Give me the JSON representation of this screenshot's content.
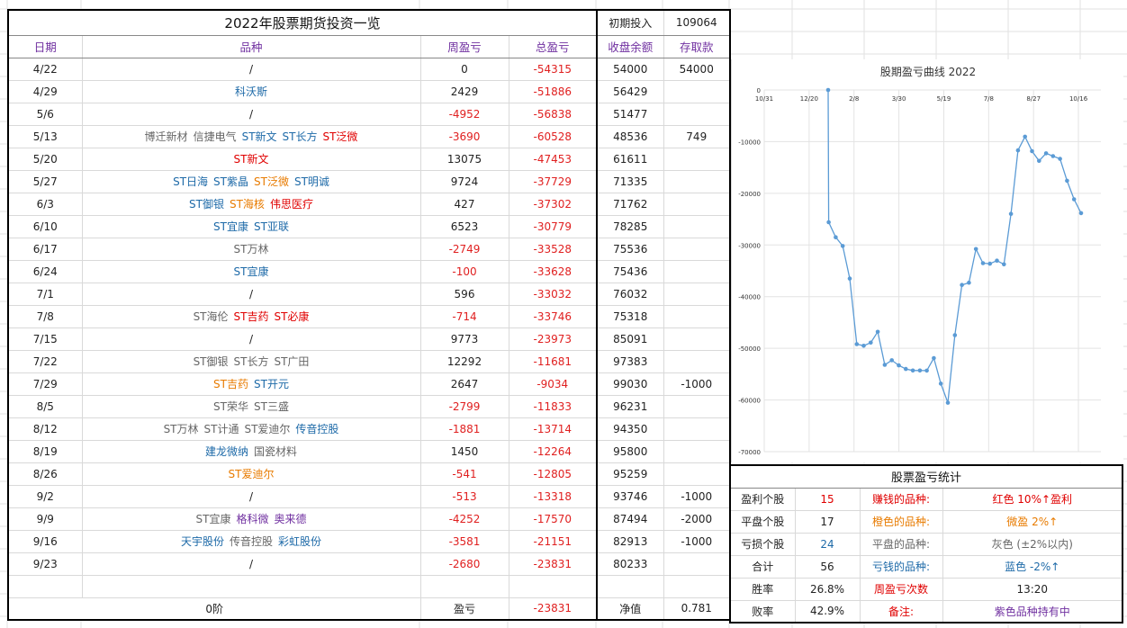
{
  "header": {
    "title": "2022年股票期货投资一览",
    "initial_label": "初期投入",
    "initial_value": "109064"
  },
  "columns": [
    "日期",
    "品种",
    "周盈亏",
    "总盈亏",
    "收盘余额",
    "存取款"
  ],
  "rows": [
    {
      "date": "4/22",
      "names": [
        {
          "t": "/",
          "c": "dark"
        }
      ],
      "weekly": "0",
      "total": "-54315",
      "balance": "54000",
      "cash": "54000"
    },
    {
      "date": "4/29",
      "names": [
        {
          "t": "科沃斯",
          "c": "blue"
        }
      ],
      "weekly": "2429",
      "total": "-51886",
      "balance": "56429",
      "cash": ""
    },
    {
      "date": "5/6",
      "names": [
        {
          "t": "/",
          "c": "dark"
        }
      ],
      "weekly": "-4952",
      "total": "-56838",
      "balance": "51477",
      "cash": ""
    },
    {
      "date": "5/13",
      "names": [
        {
          "t": "博迁新材",
          "c": "gray"
        },
        {
          "t": "信捷电气",
          "c": "gray"
        },
        {
          "t": "ST新文",
          "c": "blue"
        },
        {
          "t": "ST长方",
          "c": "blue"
        },
        {
          "t": "ST泛微",
          "c": "red"
        }
      ],
      "weekly": "-3690",
      "total": "-60528",
      "balance": "48536",
      "cash": "749"
    },
    {
      "date": "5/20",
      "names": [
        {
          "t": "ST新文",
          "c": "red"
        }
      ],
      "weekly": "13075",
      "total": "-47453",
      "balance": "61611",
      "cash": ""
    },
    {
      "date": "5/27",
      "names": [
        {
          "t": "ST日海",
          "c": "blue"
        },
        {
          "t": "ST紫晶",
          "c": "blue"
        },
        {
          "t": "ST泛微",
          "c": "orange"
        },
        {
          "t": "ST明诚",
          "c": "blue"
        }
      ],
      "weekly": "9724",
      "total": "-37729",
      "balance": "71335",
      "cash": ""
    },
    {
      "date": "6/3",
      "names": [
        {
          "t": "ST御银",
          "c": "blue"
        },
        {
          "t": "ST海核",
          "c": "orange"
        },
        {
          "t": "伟思医疗",
          "c": "red"
        }
      ],
      "weekly": "427",
      "total": "-37302",
      "balance": "71762",
      "cash": ""
    },
    {
      "date": "6/10",
      "names": [
        {
          "t": "ST宜康",
          "c": "blue"
        },
        {
          "t": "ST亚联",
          "c": "blue"
        }
      ],
      "weekly": "6523",
      "total": "-30779",
      "balance": "78285",
      "cash": ""
    },
    {
      "date": "6/17",
      "names": [
        {
          "t": "ST万林",
          "c": "gray"
        }
      ],
      "weekly": "-2749",
      "total": "-33528",
      "balance": "75536",
      "cash": ""
    },
    {
      "date": "6/24",
      "names": [
        {
          "t": "ST宜康",
          "c": "blue"
        }
      ],
      "weekly": "-100",
      "total": "-33628",
      "balance": "75436",
      "cash": ""
    },
    {
      "date": "7/1",
      "names": [
        {
          "t": "/",
          "c": "dark"
        }
      ],
      "weekly": "596",
      "total": "-33032",
      "balance": "76032",
      "cash": ""
    },
    {
      "date": "7/8",
      "names": [
        {
          "t": "ST海伦",
          "c": "gray"
        },
        {
          "t": "ST吉药",
          "c": "red"
        },
        {
          "t": "ST必康",
          "c": "red"
        }
      ],
      "weekly": "-714",
      "total": "-33746",
      "balance": "75318",
      "cash": ""
    },
    {
      "date": "7/15",
      "names": [
        {
          "t": "/",
          "c": "dark"
        }
      ],
      "weekly": "9773",
      "total": "-23973",
      "balance": "85091",
      "cash": ""
    },
    {
      "date": "7/22",
      "names": [
        {
          "t": "ST御银",
          "c": "gray"
        },
        {
          "t": "ST长方",
          "c": "gray"
        },
        {
          "t": "ST广田",
          "c": "gray"
        }
      ],
      "weekly": "12292",
      "total": "-11681",
      "balance": "97383",
      "cash": ""
    },
    {
      "date": "7/29",
      "names": [
        {
          "t": "ST吉药",
          "c": "orange"
        },
        {
          "t": "ST开元",
          "c": "blue"
        }
      ],
      "weekly": "2647",
      "total": "-9034",
      "balance": "99030",
      "cash": "-1000"
    },
    {
      "date": "8/5",
      "names": [
        {
          "t": "ST荣华",
          "c": "gray"
        },
        {
          "t": "ST三盛",
          "c": "gray"
        }
      ],
      "weekly": "-2799",
      "total": "-11833",
      "balance": "96231",
      "cash": ""
    },
    {
      "date": "8/12",
      "names": [
        {
          "t": "ST万林",
          "c": "gray"
        },
        {
          "t": "ST计通",
          "c": "gray"
        },
        {
          "t": "ST爱迪尔",
          "c": "gray"
        },
        {
          "t": "传音控股",
          "c": "blue"
        }
      ],
      "weekly": "-1881",
      "total": "-13714",
      "balance": "94350",
      "cash": ""
    },
    {
      "date": "8/19",
      "names": [
        {
          "t": "建龙微纳",
          "c": "blue"
        },
        {
          "t": "国瓷材料",
          "c": "gray"
        }
      ],
      "weekly": "1450",
      "total": "-12264",
      "balance": "95800",
      "cash": ""
    },
    {
      "date": "8/26",
      "names": [
        {
          "t": "ST爱迪尔",
          "c": "orange"
        }
      ],
      "weekly": "-541",
      "total": "-12805",
      "balance": "95259",
      "cash": ""
    },
    {
      "date": "9/2",
      "names": [
        {
          "t": "/",
          "c": "dark"
        }
      ],
      "weekly": "-513",
      "total": "-13318",
      "balance": "93746",
      "cash": "-1000"
    },
    {
      "date": "9/9",
      "names": [
        {
          "t": "ST宜康",
          "c": "gray"
        },
        {
          "t": "格科微",
          "c": "purple"
        },
        {
          "t": "奥来德",
          "c": "purple"
        }
      ],
      "weekly": "-4252",
      "total": "-17570",
      "balance": "87494",
      "cash": "-2000"
    },
    {
      "date": "9/16",
      "names": [
        {
          "t": "天宇股份",
          "c": "blue"
        },
        {
          "t": "传音控股",
          "c": "gray"
        },
        {
          "t": "彩虹股份",
          "c": "blue"
        }
      ],
      "weekly": "-3581",
      "total": "-21151",
      "balance": "82913",
      "cash": "-1000"
    },
    {
      "date": "9/23",
      "names": [
        {
          "t": "/",
          "c": "dark"
        }
      ],
      "weekly": "-2680",
      "total": "-23831",
      "balance": "80233",
      "cash": ""
    }
  ],
  "footer": {
    "label": "0阶",
    "pnl_label": "盈亏",
    "pnl_value": "-23831",
    "nav_label": "净值",
    "nav_value": "0.781"
  },
  "chart_data": {
    "type": "scatter",
    "title": "股期盈亏曲线 2022",
    "x": [
      "4/22",
      "4/29",
      "5/6",
      "5/13",
      "5/20",
      "5/27",
      "6/3",
      "6/10",
      "6/17",
      "6/24",
      "7/1",
      "7/8",
      "7/15",
      "7/22",
      "7/29",
      "8/5",
      "8/12",
      "8/19",
      "8/26",
      "9/2",
      "9/9",
      "9/16",
      "9/23"
    ],
    "y": [
      -54315,
      -51886,
      -56838,
      -60528,
      -47453,
      -37729,
      -37302,
      -30779,
      -33528,
      -33628,
      -33032,
      -33746,
      -23973,
      -11681,
      -9034,
      -11833,
      -13714,
      -12264,
      -12805,
      -13318,
      -17570,
      -21151,
      -23831
    ],
    "x_tick_labels": [
      "10/31",
      "12/20",
      "2/8",
      "3/30",
      "5/19",
      "7/8",
      "8/27",
      "10/16"
    ],
    "y_tick_labels": [
      "0",
      "-10000",
      "-20000",
      "-30000",
      "-40000",
      "-50000",
      "-60000",
      "-70000"
    ],
    "ylim": [
      -70000,
      0
    ],
    "extra_left_segment": {
      "note": "earlier points before 4/22 visible at left of curve",
      "y": [
        0,
        -25600,
        -28500,
        -30200,
        -36500,
        -49200,
        -49500,
        -48900,
        -46800,
        -53200,
        -52300,
        -53300,
        -54000,
        -54300,
        -54300
      ]
    },
    "grid": true,
    "color": "#5b9bd5"
  },
  "stats": {
    "title": "股票盈亏统计",
    "rows": [
      {
        "label": "盈利个股",
        "value": "15",
        "vc": "red",
        "key": "赚钱的品种:",
        "kc": "red",
        "desc": "红色 10%↑盈利",
        "dc": "red"
      },
      {
        "label": "平盘个股",
        "value": "17",
        "vc": "dark",
        "key": "橙色的品种:",
        "kc": "orange",
        "desc": "微盈 2%↑",
        "dc": "orange"
      },
      {
        "label": "亏损个股",
        "value": "24",
        "vc": "blue",
        "key": "平盘的品种:",
        "kc": "gray",
        "desc": "灰色 (±2%以内)",
        "dc": "gray"
      },
      {
        "label": "合计",
        "value": "56",
        "vc": "dark",
        "key": "亏钱的品种:",
        "kc": "blue",
        "desc": "蓝色 -2%↑",
        "dc": "blue"
      },
      {
        "label": "胜率",
        "value": "26.8%",
        "vc": "dark",
        "key": "周盈亏次数",
        "kc": "red",
        "desc": "13:20",
        "dc": "dark"
      },
      {
        "label": "败率",
        "value": "42.9%",
        "vc": "dark",
        "key": "备注:",
        "kc": "red",
        "desc": "紫色品种持有中",
        "dc": "purple"
      }
    ]
  }
}
